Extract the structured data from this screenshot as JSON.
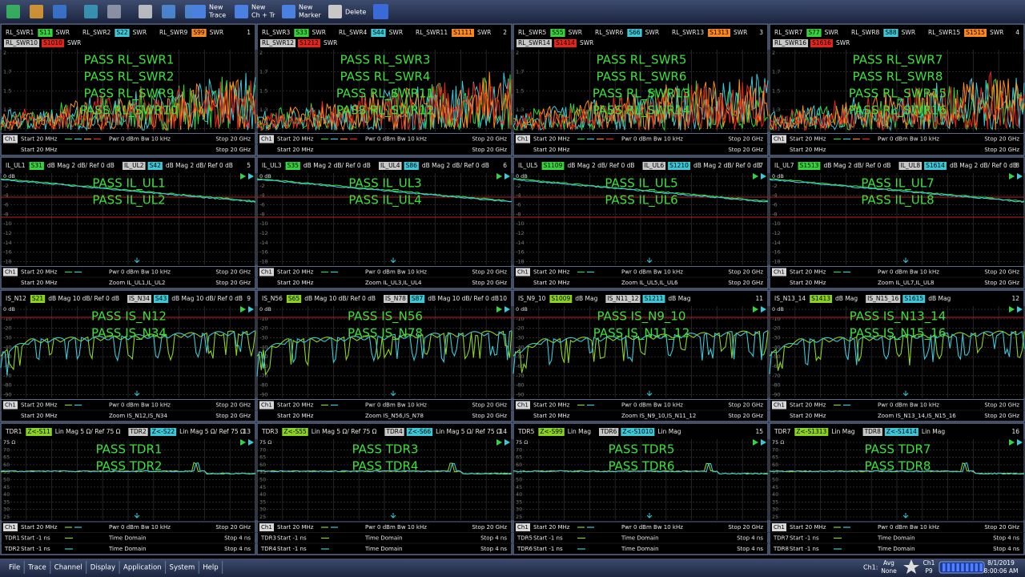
{
  "toolbar": {
    "buttons": [
      [
        "New",
        "Trace"
      ],
      [
        "New",
        "Ch + Tr"
      ],
      [
        "New",
        "Marker"
      ],
      [
        "Delete"
      ]
    ]
  },
  "rows": [
    {
      "kind": "swr",
      "yticks": [
        "2",
        "1.7",
        "1.5",
        "1.3",
        "1.1"
      ],
      "panels": [
        {
          "num": "1",
          "traces": [
            {
              "name": "RL_SWR1",
              "param": "S11",
              "fmt": "SWR",
              "color": "#36d43c"
            },
            {
              "name": "RL_SWR2",
              "param": "S22",
              "fmt": "SWR",
              "color": "#3cc8d8"
            },
            {
              "name": "RL_SWR9",
              "param": "S99",
              "fmt": "SWR",
              "color": "#ff8a1c"
            },
            {
              "name": "RL_SWR10",
              "param": "S1010",
              "fmt": "SWR",
              "color": "#e8241c"
            }
          ],
          "pass": [
            "PASS RL_SWR1",
            "PASS RL_SWR2",
            "PASS RL_SWR9",
            "PASS RL_SWR10"
          ],
          "footer": [
            {
              "ch": "Ch1",
              "start": "Start 20 MHz",
              "mid": "Pwr 0 dBm Bw 10 kHz",
              "stop": "Stop 20 GHz"
            },
            {
              "start": "Start 20 MHz",
              "stop": "Stop 20 GHz"
            }
          ]
        },
        {
          "num": "2",
          "traces": [
            {
              "name": "RL_SWR3",
              "param": "S33",
              "fmt": "SWR",
              "color": "#36d43c"
            },
            {
              "name": "RL_SWR4",
              "param": "S44",
              "fmt": "SWR",
              "color": "#3cc8d8"
            },
            {
              "name": "RL_SWR11",
              "param": "S1111",
              "fmt": "SWR",
              "color": "#ff8a1c"
            },
            {
              "name": "RL_SWR12",
              "param": "S1212",
              "fmt": "SWR",
              "color": "#e8241c"
            }
          ],
          "pass": [
            "PASS RL_SWR3",
            "PASS RL_SWR4",
            "PASS RL_SWR11",
            "PASS RL_SWR12"
          ],
          "footer": [
            {
              "ch": "Ch1",
              "start": "Start 20 MHz",
              "mid": "Pwr 0 dBm Bw 10 kHz",
              "stop": "Stop 20 GHz"
            },
            {
              "start": "Start 20 MHz",
              "stop": "Stop 20 GHz"
            }
          ]
        },
        {
          "num": "3",
          "traces": [
            {
              "name": "RL_SWR5",
              "param": "S55",
              "fmt": "SWR",
              "color": "#36d43c"
            },
            {
              "name": "RL_SWR6",
              "param": "S66",
              "fmt": "SWR",
              "color": "#3cc8d8"
            },
            {
              "name": "RL_SWR13",
              "param": "S1313",
              "fmt": "SWR",
              "color": "#ff8a1c"
            },
            {
              "name": "RL_SWR14",
              "param": "S1414",
              "fmt": "SWR",
              "color": "#e8241c"
            }
          ],
          "pass": [
            "PASS RL_SWR5",
            "PASS RL_SWR6",
            "PASS RL_SWR13",
            "PASS RL_SWR14"
          ],
          "footer": [
            {
              "ch": "Ch1",
              "start": "Start 20 MHz",
              "mid": "Pwr 0 dBm Bw 10 kHz",
              "stop": "Stop 20 GHz"
            },
            {
              "start": "Start 20 MHz",
              "stop": "Stop 20 GHz"
            }
          ]
        },
        {
          "num": "4",
          "traces": [
            {
              "name": "RL_SWR7",
              "param": "S77",
              "fmt": "SWR",
              "color": "#36d43c"
            },
            {
              "name": "RL_SWR8",
              "param": "S88",
              "fmt": "SWR",
              "color": "#3cc8d8"
            },
            {
              "name": "RL_SWR15",
              "param": "S1515",
              "fmt": "SWR",
              "color": "#ff8a1c"
            },
            {
              "name": "RL_SWR16",
              "param": "S1616",
              "fmt": "SWR",
              "color": "#e8241c"
            }
          ],
          "pass": [
            "PASS RL_SWR7",
            "PASS RL_SWR8",
            "PASS RL_SWR15",
            "PASS RL_SWR16"
          ],
          "footer": [
            {
              "ch": "Ch1",
              "start": "Start 20 MHz",
              "mid": "Pwr 0 dBm Bw 10 kHz",
              "stop": "Stop 20 GHz"
            },
            {
              "start": "Start 20 MHz",
              "stop": "Stop 20 GHz"
            }
          ]
        }
      ]
    },
    {
      "kind": "il",
      "yticks": [
        "0 dB",
        "-2",
        "-4",
        "-6",
        "-8",
        "-10",
        "-12",
        "-14",
        "-16",
        "-18"
      ],
      "panels": [
        {
          "num": "5",
          "traces": [
            {
              "name": "IL_UL1",
              "param": "S31",
              "fmt": "dB Mag 2 dB/ Ref 0 dB",
              "color": "#36d43c"
            },
            {
              "name": "IL_UL2",
              "param": "S42",
              "fmt": "dB Mag 2 dB/ Ref 0 dB",
              "color": "#3cc8d8"
            }
          ],
          "pass": [
            "PASS IL_UL1",
            "PASS IL_UL2"
          ],
          "footer": [
            {
              "ch": "Ch1",
              "start": "Start 20 MHz",
              "mid": "Pwr 0 dBm Bw 10 kHz",
              "stop": "Stop 20 GHz"
            },
            {
              "start": "Start 20 MHz",
              "mid": "Zoom IL_UL1,IL_UL2",
              "stop": "Stop 20 GHz"
            }
          ]
        },
        {
          "num": "6",
          "traces": [
            {
              "name": "IL_UL3",
              "param": "S35",
              "fmt": "dB Mag 2 dB/ Ref 0 dB",
              "color": "#36d43c"
            },
            {
              "name": "IL_UL4",
              "param": "S86",
              "fmt": "dB Mag 2 dB/ Ref 0 dB",
              "color": "#3cc8d8"
            }
          ],
          "pass": [
            "PASS IL_UL3",
            "PASS IL_UL4"
          ],
          "footer": [
            {
              "ch": "Ch1",
              "start": "Start 20 MHz",
              "mid": "Pwr 0 dBm Bw 10 kHz",
              "stop": "Stop 20 GHz"
            },
            {
              "start": "Start 20 MHz",
              "mid": "Zoom IL_UL3,IL_UL4",
              "stop": "Stop 20 GHz"
            }
          ]
        },
        {
          "num": "7",
          "traces": [
            {
              "name": "IL_UL5",
              "param": "S1109",
              "fmt": "dB Mag 2 dB/ Ref 0 dB",
              "color": "#36d43c"
            },
            {
              "name": "IL_UL6",
              "param": "S1210",
              "fmt": "dB Mag 2 dB/ Ref 0 dB",
              "color": "#3cc8d8"
            }
          ],
          "pass": [
            "PASS IL_UL5",
            "PASS IL_UL6"
          ],
          "footer": [
            {
              "ch": "Ch1",
              "start": "Start 20 MHz",
              "mid": "Pwr 0 dBm Bw 10 kHz",
              "stop": "Stop 20 GHz"
            },
            {
              "start": "Start 20 MHz",
              "mid": "Zoom IL_UL5,IL_UL6",
              "stop": "Stop 20 GHz"
            }
          ]
        },
        {
          "num": "8",
          "traces": [
            {
              "name": "IL_UL7",
              "param": "S1513",
              "fmt": "dB Mag 2 dB/ Ref 0 dB",
              "color": "#36d43c"
            },
            {
              "name": "IL_UL8",
              "param": "S1614",
              "fmt": "dB Mag 2 dB/ Ref 0 dB",
              "color": "#3cc8d8"
            }
          ],
          "pass": [
            "PASS IL_UL7",
            "PASS IL_UL8"
          ],
          "footer": [
            {
              "ch": "Ch1",
              "start": "Start 20 MHz",
              "mid": "Pwr 0 dBm Bw 10 kHz",
              "stop": "Stop 20 GHz"
            },
            {
              "start": "Start 20 MHz",
              "mid": "Zoom IL_UL7,IL_UL8",
              "stop": "Stop 20 GHz"
            }
          ]
        }
      ]
    },
    {
      "kind": "is",
      "yticks": [
        "0 dB",
        "-10",
        "-20",
        "-30",
        "-40",
        "-50",
        "-60",
        "-70",
        "-80",
        "-90"
      ],
      "panels": [
        {
          "num": "9",
          "traces": [
            {
              "name": "IS_N12",
              "param": "S21",
              "fmt": "dB Mag 10 dB/ Ref 0 dB",
              "color": "#8cd41c"
            },
            {
              "name": "IS_N34",
              "param": "S43",
              "fmt": "dB Mag 10 dB/ Ref 0 dB",
              "color": "#3cc8d8"
            }
          ],
          "pass": [
            "PASS IS_N12",
            "PASS IS_N34"
          ],
          "footer": [
            {
              "ch": "Ch1",
              "start": "Start 20 MHz",
              "mid": "Pwr 0 dBm Bw 10 kHz",
              "stop": "Stop 20 GHz"
            },
            {
              "start": "Start 20 MHz",
              "mid": "Zoom IS_N12,IS_N34",
              "stop": "Stop 20 GHz"
            }
          ]
        },
        {
          "num": "10",
          "traces": [
            {
              "name": "IS_N56",
              "param": "S65",
              "fmt": "dB Mag 10 dB/ Ref 0 dB",
              "color": "#8cd41c"
            },
            {
              "name": "IS_N78",
              "param": "S87",
              "fmt": "dB Mag 10 dB/ Ref 0 dB",
              "color": "#3cc8d8"
            }
          ],
          "pass": [
            "PASS IS_N56",
            "PASS IS_N78"
          ],
          "footer": [
            {
              "ch": "Ch1",
              "start": "Start 20 MHz",
              "mid": "Pwr 0 dBm Bw 10 kHz",
              "stop": "Stop 20 GHz"
            },
            {
              "start": "Start 20 MHz",
              "mid": "Zoom IS_N56,IS_N78",
              "stop": "Stop 20 GHz"
            }
          ]
        },
        {
          "num": "11",
          "traces": [
            {
              "name": "IS_N9_10",
              "param": "S1009",
              "fmt": "dB Mag",
              "color": "#8cd41c"
            },
            {
              "name": "IS_N11_12",
              "param": "S1211",
              "fmt": "dB Mag",
              "color": "#3cc8d8"
            }
          ],
          "pass": [
            "PASS IS_N9_10",
            "PASS IS_N11_12"
          ],
          "footer": [
            {
              "ch": "Ch1",
              "start": "Start 20 MHz",
              "mid": "Pwr 0 dBm Bw 10 kHz",
              "stop": "Stop 20 GHz"
            },
            {
              "start": "Start 20 MHz",
              "mid": "Zoom IS_N9_10,IS_N11_12",
              "stop": "Stop 20 GHz"
            }
          ]
        },
        {
          "num": "12",
          "traces": [
            {
              "name": "IS_N13_14",
              "param": "S1413",
              "fmt": "dB Mag",
              "color": "#8cd41c"
            },
            {
              "name": "IS_N15_16",
              "param": "S1615",
              "fmt": "dB Mag",
              "color": "#3cc8d8"
            }
          ],
          "pass": [
            "PASS IS_N13_14",
            "PASS IS_N15_16"
          ],
          "footer": [
            {
              "ch": "Ch1",
              "start": "Start 20 MHz",
              "mid": "Pwr 0 dBm Bw 10 kHz",
              "stop": "Stop 20 GHz"
            },
            {
              "start": "Start 20 MHz",
              "mid": "Zoom IS_N13_14,IS_N15_16",
              "stop": "Stop 20 GHz"
            }
          ]
        }
      ]
    },
    {
      "kind": "tdr",
      "yticks": [
        "75 Ω",
        "70",
        "65",
        "60",
        "55",
        "50",
        "45",
        "40",
        "35",
        "30",
        "25"
      ],
      "panels": [
        {
          "num": "13",
          "traces": [
            {
              "name": "TDR1",
              "param": "Z<-S11",
              "fmt": "Lin Mag 5 Ω/ Ref 75 Ω",
              "color": "#8cd41c"
            },
            {
              "name": "TDR2",
              "param": "Z<-S22",
              "fmt": "Lin Mag 5 Ω/ Ref 75 Ω",
              "color": "#3cc8d8"
            }
          ],
          "pass": [
            "PASS TDR1",
            "PASS TDR2"
          ],
          "footer": [
            {
              "ch": "Ch1",
              "start": "Start 20 MHz",
              "mid": "Pwr 0 dBm Bw 10 kHz",
              "stop": "Stop 20 GHz"
            },
            {
              "ch": "TDR1",
              "start": "Start -1 ns",
              "mid": "Time Domain",
              "stop": "Stop 4 ns"
            },
            {
              "ch": "TDR2",
              "start": "Start -1 ns",
              "mid": "Time Domain",
              "stop": "Stop 4 ns"
            }
          ]
        },
        {
          "num": "14",
          "traces": [
            {
              "name": "TDR3",
              "param": "Z<-S55",
              "fmt": "Lin Mag 5 Ω/ Ref 75 Ω",
              "color": "#8cd41c"
            },
            {
              "name": "TDR4",
              "param": "Z<-S66",
              "fmt": "Lin Mag 5 Ω/ Ref 75 Ω",
              "color": "#3cc8d8"
            }
          ],
          "pass": [
            "PASS TDR3",
            "PASS TDR4"
          ],
          "footer": [
            {
              "ch": "Ch1",
              "start": "Start 20 MHz",
              "mid": "Pwr 0 dBm Bw 10 kHz",
              "stop": "Stop 20 GHz"
            },
            {
              "ch": "TDR3",
              "start": "Start -1 ns",
              "mid": "Time Domain",
              "stop": "Stop 4 ns"
            },
            {
              "ch": "TDR4",
              "start": "Start -1 ns",
              "mid": "Time Domain",
              "stop": "Stop 4 ns"
            }
          ]
        },
        {
          "num": "15",
          "traces": [
            {
              "name": "TDR5",
              "param": "Z<-S99",
              "fmt": "Lin Mag",
              "color": "#8cd41c"
            },
            {
              "name": "TDR6",
              "param": "Z<-S1010",
              "fmt": "Lin Mag",
              "color": "#3cc8d8"
            }
          ],
          "pass": [
            "PASS TDR5",
            "PASS TDR6"
          ],
          "footer": [
            {
              "ch": "Ch1",
              "start": "Start 20 MHz",
              "mid": "Pwr 0 dBm Bw 10 kHz",
              "stop": "Stop 20 GHz"
            },
            {
              "ch": "TDR5",
              "start": "Start -1 ns",
              "mid": "Time Domain",
              "stop": "Stop 4 ns"
            },
            {
              "ch": "TDR6",
              "start": "Start -1 ns",
              "mid": "Time Domain",
              "stop": "Stop 4 ns"
            }
          ]
        },
        {
          "num": "16",
          "traces": [
            {
              "name": "TDR7",
              "param": "Z<-S1313",
              "fmt": "Lin Mag",
              "color": "#8cd41c"
            },
            {
              "name": "TDR8",
              "param": "Z<-S1414",
              "fmt": "Lin Mag",
              "color": "#3cc8d8"
            }
          ],
          "pass": [
            "PASS TDR7",
            "PASS TDR8"
          ],
          "footer": [
            {
              "ch": "Ch1",
              "start": "Start 20 MHz",
              "mid": "Pwr 0 dBm Bw 10 kHz",
              "stop": "Stop 20 GHz"
            },
            {
              "ch": "TDR7",
              "start": "Start -1 ns",
              "mid": "Time Domain",
              "stop": "Stop 4 ns"
            },
            {
              "ch": "TDR8",
              "start": "Start -1 ns",
              "mid": "Time Domain",
              "stop": "Stop 4 ns"
            }
          ]
        }
      ]
    }
  ],
  "menu": [
    "File",
    "Trace",
    "Channel",
    "Display",
    "Application",
    "System",
    "Help"
  ],
  "status": {
    "channel": "Ch1:",
    "avg": "Avg",
    "avg_state": "None",
    "ch": "Ch1",
    "port": "P9",
    "date": "8/1/2019",
    "time": "8:00:06 AM"
  }
}
